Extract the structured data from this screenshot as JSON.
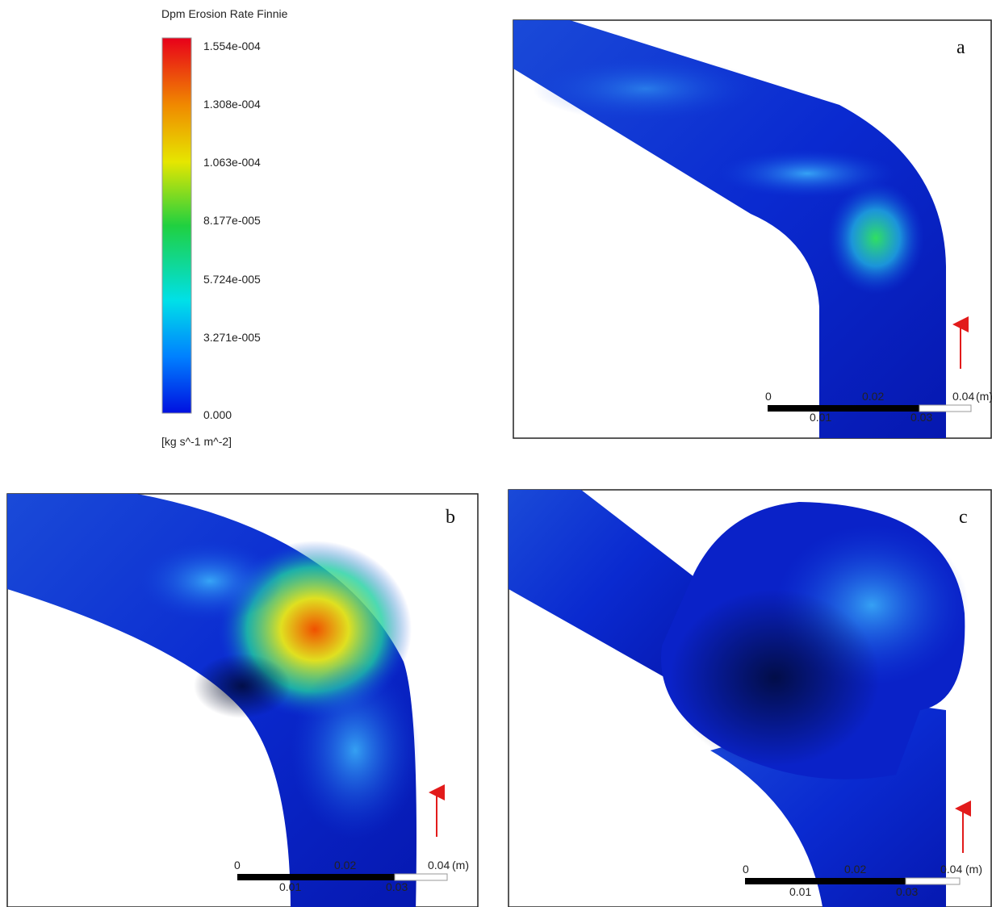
{
  "legend": {
    "title": "Dpm Erosion Rate Finnie",
    "ticks": [
      "1.554e-004",
      "1.308e-004",
      "1.063e-004",
      "8.177e-005",
      "5.724e-005",
      "3.271e-005",
      "0.000"
    ],
    "unit": "[kg s^-1 m^-2]"
  },
  "panels": [
    {
      "label": "a",
      "scale_labels": [
        "0",
        "0.01",
        "0.02",
        "0.03",
        "0.04",
        "(m)"
      ]
    },
    {
      "label": "b",
      "scale_labels": [
        "0",
        "0.01",
        "0.02",
        "0.03",
        "0.04",
        "(m)"
      ]
    },
    {
      "label": "c",
      "scale_labels": [
        "0",
        "0.01",
        "0.02",
        "0.03",
        "0.04",
        "(m)"
      ]
    }
  ]
}
